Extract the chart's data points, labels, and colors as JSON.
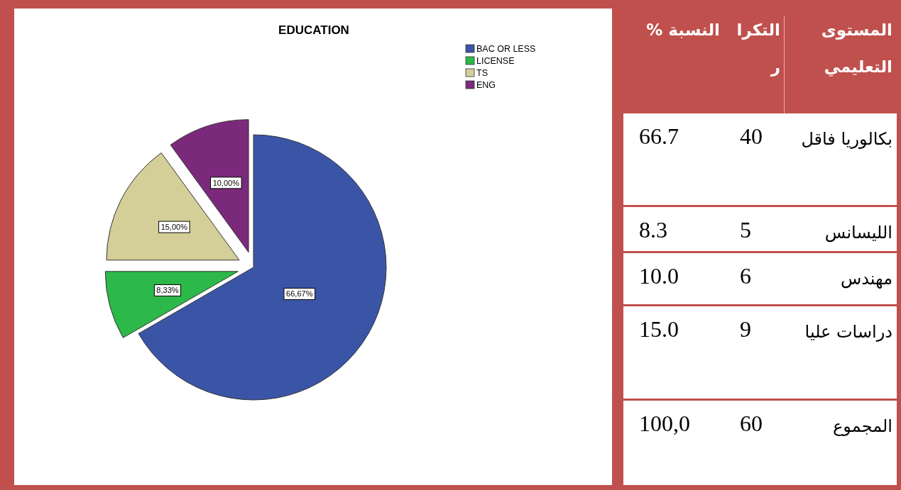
{
  "chart_data": [
    {
      "type": "pie",
      "title": "EDUCATION",
      "categories": [
        "BAC OR LESS",
        "LICENSE",
        "TS",
        "ENG"
      ],
      "values": [
        66.67,
        8.33,
        15.0,
        10.0
      ],
      "colors": [
        "#3b55a6",
        "#2db84a",
        "#d4cf98",
        "#7b2a7b"
      ],
      "value_labels": [
        "66,67%",
        "8,33%",
        "15,00%",
        "10,00%"
      ],
      "legend": "top right"
    },
    {
      "type": "other",
      "categories": [
        "المستوى التعليمي",
        "التكرار",
        "النسبة %"
      ],
      "y_categories": [
        "بكالوريا فاقل",
        "الليسانس",
        "مهندس",
        "دراسات عليا",
        "المجموع"
      ],
      "cell_labels": [
        [
          "40",
          "66.7"
        ],
        [
          "5",
          "8.3"
        ],
        [
          "6",
          "10.0"
        ],
        [
          "9",
          "15.0"
        ],
        [
          "60",
          "100,0"
        ]
      ]
    }
  ]
}
